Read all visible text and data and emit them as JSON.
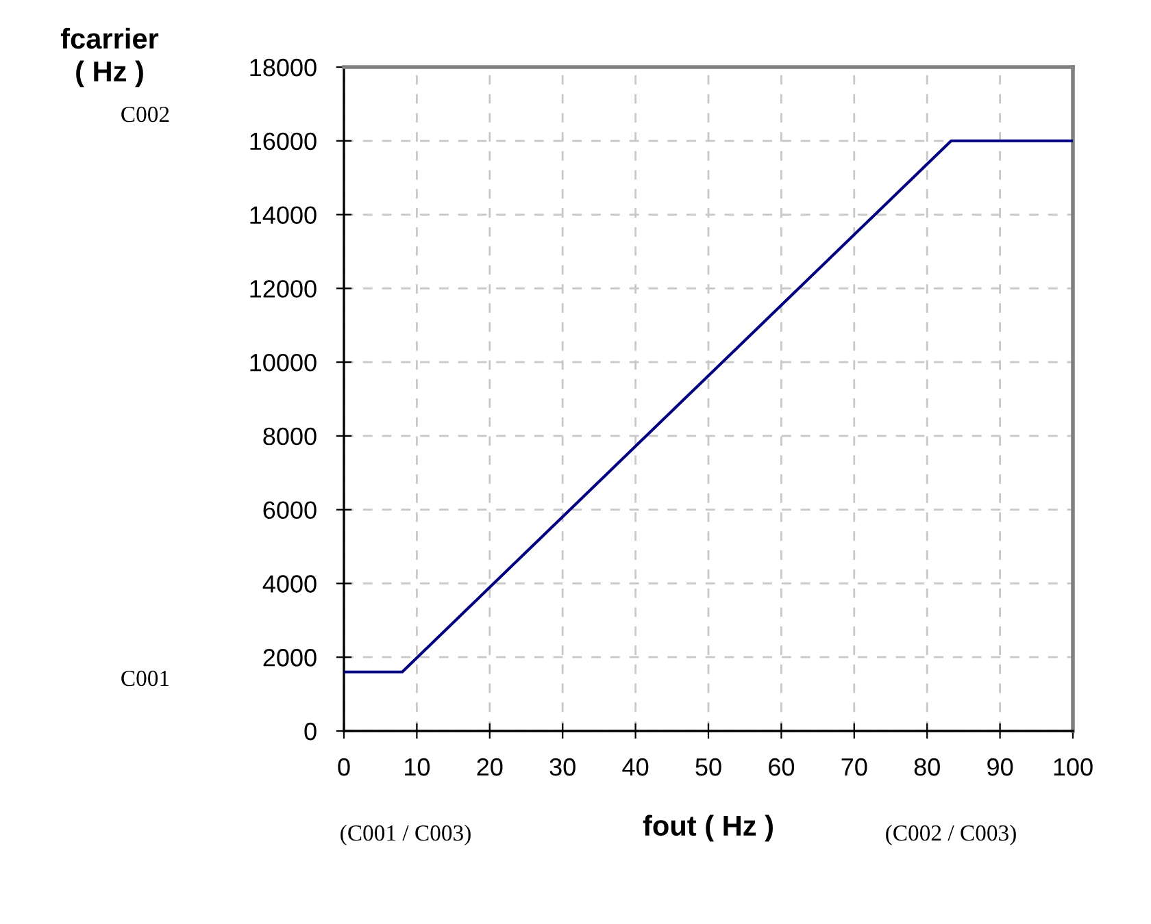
{
  "chart_data": {
    "type": "line",
    "xlabel": "fout ( Hz )",
    "ylabel": "fcarrier\n( Hz )",
    "series": [
      {
        "color": "#000080",
        "x": [
          0,
          8,
          83.3,
          100
        ],
        "values": [
          1600,
          1600,
          16000,
          16000
        ]
      }
    ],
    "xlim": [
      0,
      100
    ],
    "xticks": [
      0,
      10,
      20,
      30,
      40,
      50,
      60,
      70,
      80,
      90,
      100
    ],
    "ylim": [
      0,
      18000
    ],
    "yticks": [
      0,
      2000,
      4000,
      6000,
      8000,
      10000,
      12000,
      14000,
      16000,
      18000
    ],
    "grid": true,
    "line_style": "solid",
    "marker": "none",
    "annotations": [
      "C002",
      "C001",
      "(C001 / C003)",
      "(C002 / C003)"
    ]
  }
}
